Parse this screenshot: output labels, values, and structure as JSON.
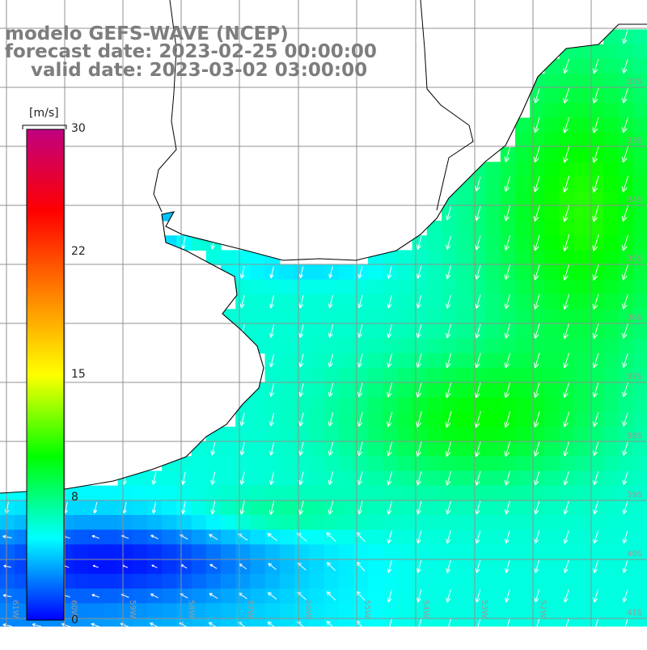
{
  "title": {
    "line1": "modelo GEFS-WAVE (NCEP)",
    "line2": "forecast date: 2023-02-25 00:00:00",
    "line3": "    valid date: 2023-03-02 03:00:00"
  },
  "colorbar": {
    "unit": "[m/s]",
    "min": 0,
    "max": 30,
    "ticks": [
      "30",
      "22",
      "15",
      "8",
      "0"
    ],
    "tick_values": [
      30,
      22,
      15,
      8,
      0
    ],
    "stops": [
      "#0000ff",
      "#00ffff",
      "#00ff00",
      "#ffff00",
      "#ff8000",
      "#ff0000",
      "#c00080"
    ]
  },
  "map": {
    "region": {
      "lon_min": -62,
      "lon_max": -51,
      "lat_min": -42,
      "lat_max": -31
    },
    "lat_labels": [
      "32S",
      "33S",
      "34S",
      "35S",
      "36S",
      "37S",
      "38S",
      "39S",
      "40S",
      "41S"
    ],
    "lon_labels": [
      "61W",
      "60W",
      "59W",
      "58W",
      "57W",
      "56W",
      "55W",
      "54W",
      "53W",
      "52W"
    ],
    "land_color": "#ffffff",
    "grid_color": "#909090",
    "arrow_color": "#ffffff",
    "wind_direction": "toward south-southwest"
  }
}
